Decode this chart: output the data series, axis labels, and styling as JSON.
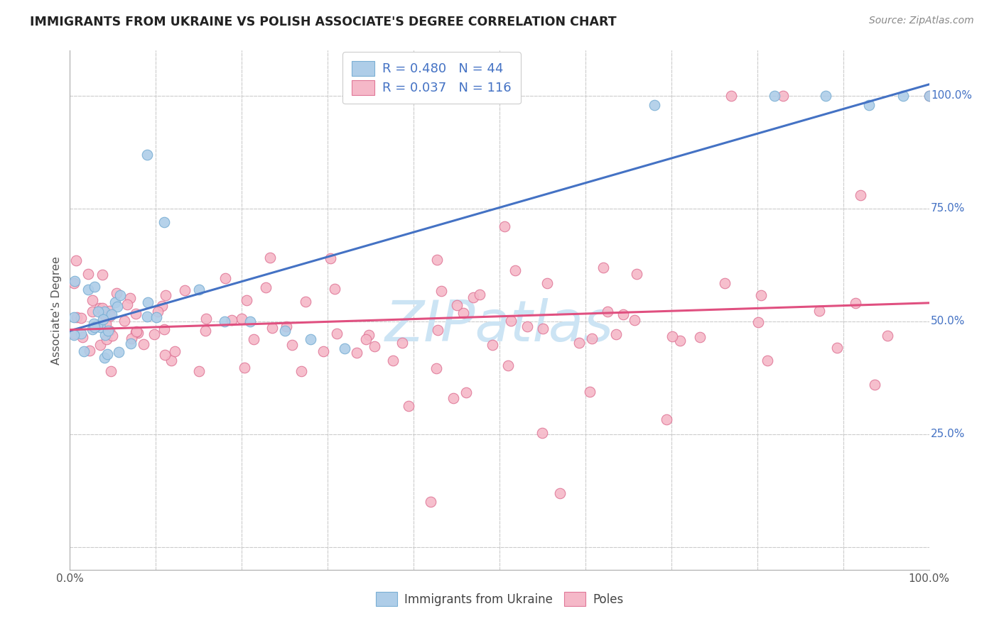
{
  "title": "IMMIGRANTS FROM UKRAINE VS POLISH ASSOCIATE'S DEGREE CORRELATION CHART",
  "source": "Source: ZipAtlas.com",
  "ylabel": "Associate's Degree",
  "legend1_label": "R = 0.480   N = 44",
  "legend2_label": "R = 0.037   N = 116",
  "blue_scatter_color": "#aecde8",
  "blue_scatter_edge": "#7aafd4",
  "pink_scatter_color": "#f5b8c8",
  "pink_scatter_edge": "#e07898",
  "blue_line_color": "#4472c4",
  "pink_line_color": "#e05080",
  "watermark_color": "#cce4f4",
  "title_color": "#222222",
  "source_color": "#888888",
  "ylabel_color": "#555555",
  "tick_label_color": "#555555",
  "right_tick_color": "#4472c4",
  "grid_color": "#cccccc",
  "legend_text_color": "#4472c4",
  "legend_edge_color": "#cccccc"
}
